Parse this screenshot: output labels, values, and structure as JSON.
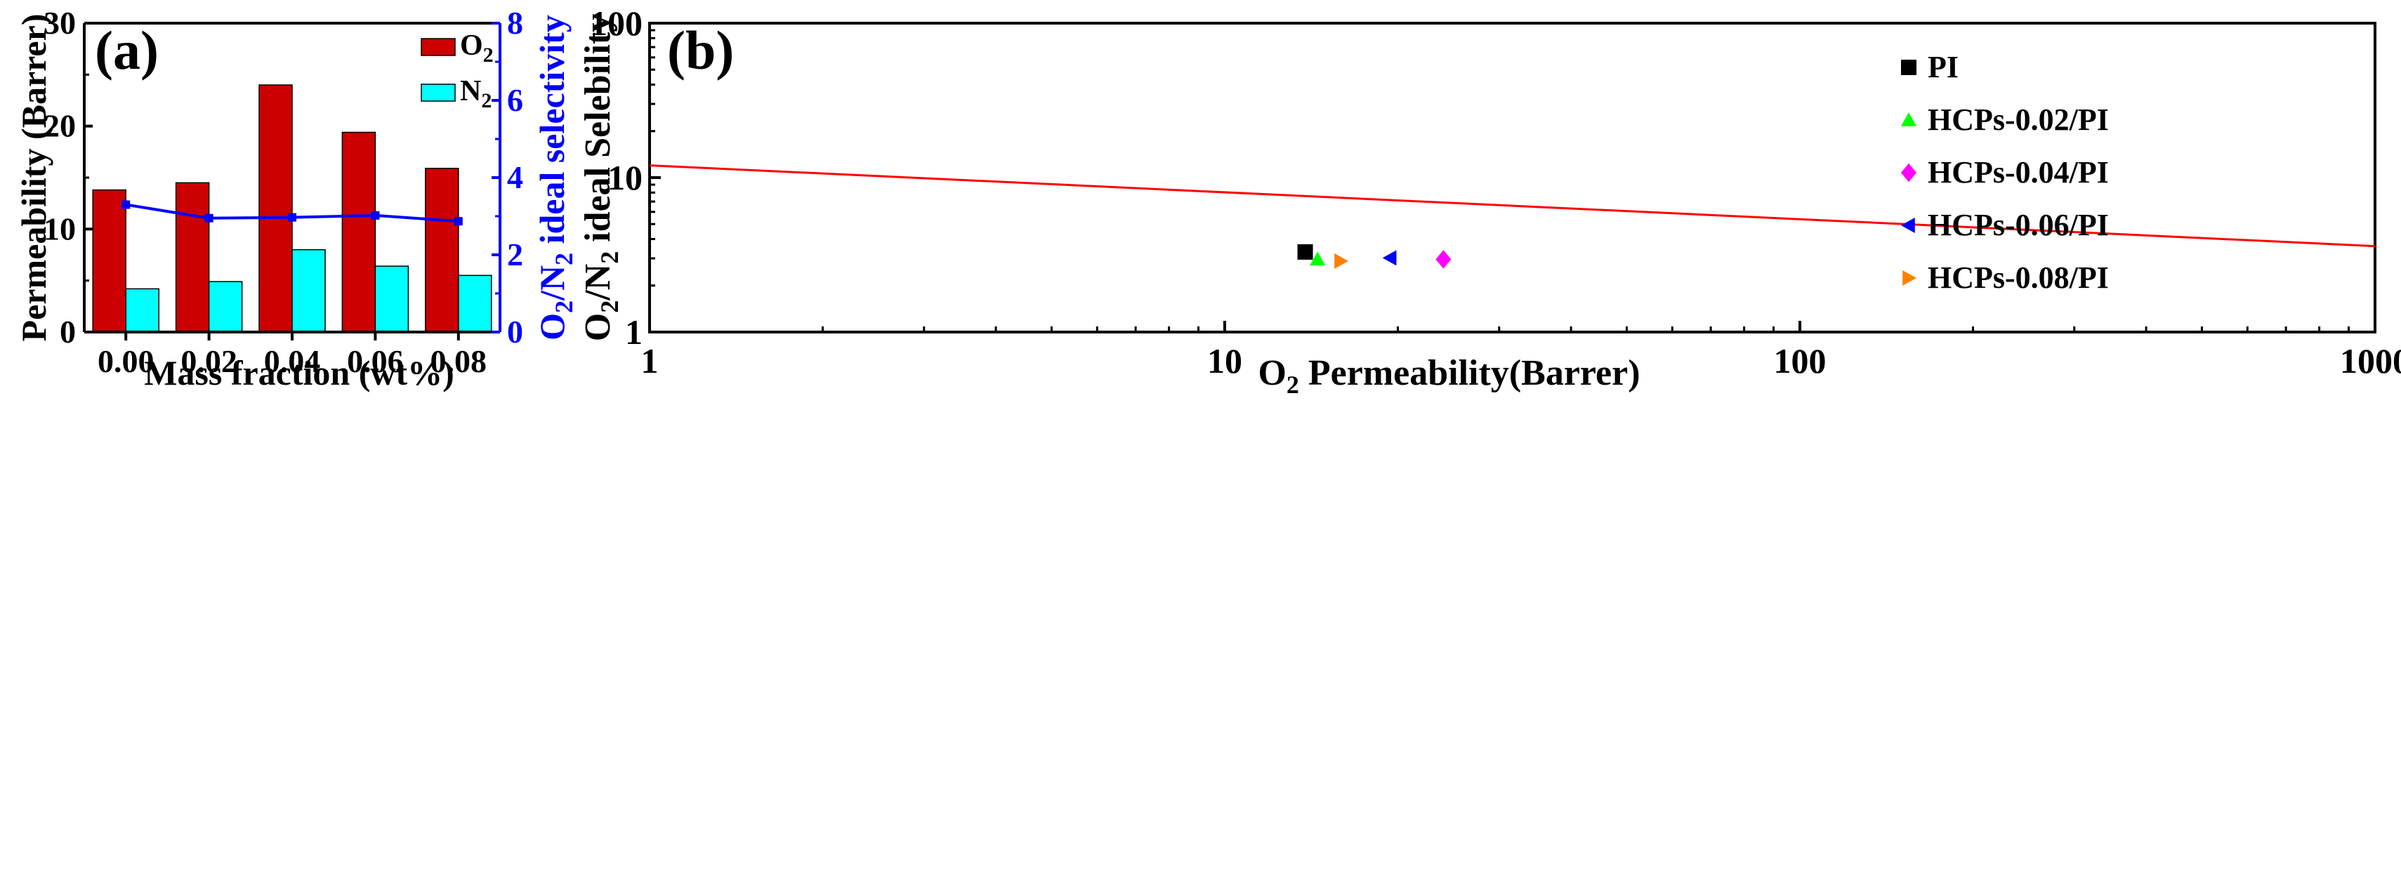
{
  "chart_data": [
    {
      "type": "bar",
      "panel_label": "(a)",
      "categories": [
        "0.00",
        "0.02",
        "0.04",
        "0.06",
        "0.08"
      ],
      "xlabel": "Mass fraction (wt%)",
      "ylabel": "Permeability (Barrer)",
      "ylim": [
        0,
        30
      ],
      "yticks": [
        "0",
        "10",
        "20",
        "30"
      ],
      "series": [
        {
          "name": "O2",
          "name_main": "O",
          "name_sub": "2",
          "color": "#cc0000",
          "values": [
            13.8,
            14.5,
            24.0,
            19.4,
            15.9
          ]
        },
        {
          "name": "N2",
          "name_main": "N",
          "name_sub": "2",
          "color": "#00ffff",
          "values": [
            4.2,
            4.9,
            8.0,
            6.4,
            5.5
          ]
        }
      ],
      "y2": {
        "label": "O2/N2 ideal selectivity",
        "label_parts": [
          "O",
          "2",
          "/N",
          "2",
          " ideal selectivity"
        ],
        "ylim": [
          0,
          8
        ],
        "ticks": [
          "0",
          "2",
          "4",
          "6",
          "8"
        ],
        "color": "#0000ff",
        "series": {
          "name": "O2/N2 ideal selectivity",
          "type": "line",
          "values": [
            3.3,
            2.95,
            2.97,
            3.02,
            2.87
          ]
        }
      },
      "legend_position": "top-right"
    },
    {
      "type": "scatter",
      "panel_label": "(b)",
      "xscale": "log",
      "yscale": "log",
      "xlim": [
        1,
        1000
      ],
      "ylim": [
        1,
        100
      ],
      "xticks": [
        "1",
        "10",
        "100",
        "1000"
      ],
      "yticks": [
        "1",
        "10",
        "100"
      ],
      "xlabel": "O2 Permeability(Barrer)",
      "xlabel_parts": [
        "O",
        "2",
        " Permeability(Barrer)"
      ],
      "ylabel": "O2/N2 ideal Selebility",
      "ylabel_parts": [
        "O",
        "2",
        "/N",
        "2",
        " ideal Selebility"
      ],
      "series": [
        {
          "name": "PI",
          "marker": "square",
          "color": "#000000",
          "x": [
            13.8
          ],
          "y": [
            3.3
          ]
        },
        {
          "name": "HCPs-0.02/PI",
          "marker": "triangle-up",
          "color": "#00ff00",
          "x": [
            14.5
          ],
          "y": [
            2.96
          ]
        },
        {
          "name": "HCPs-0.04/PI",
          "marker": "diamond",
          "color": "#ff00ff",
          "x": [
            24.0
          ],
          "y": [
            2.96
          ]
        },
        {
          "name": "HCPs-0.06/PI",
          "marker": "triangle-left",
          "color": "#0000ff",
          "x": [
            19.4
          ],
          "y": [
            3.02
          ]
        },
        {
          "name": "HCPs-0.08/PI",
          "marker": "triangle-right",
          "color": "#ff8000",
          "x": [
            15.9
          ],
          "y": [
            2.88
          ]
        }
      ],
      "upper_bound": {
        "x": [
          1,
          1000
        ],
        "y": [
          12.0,
          3.6
        ],
        "color": "#ff0000"
      },
      "legend_position": "top-right"
    }
  ]
}
